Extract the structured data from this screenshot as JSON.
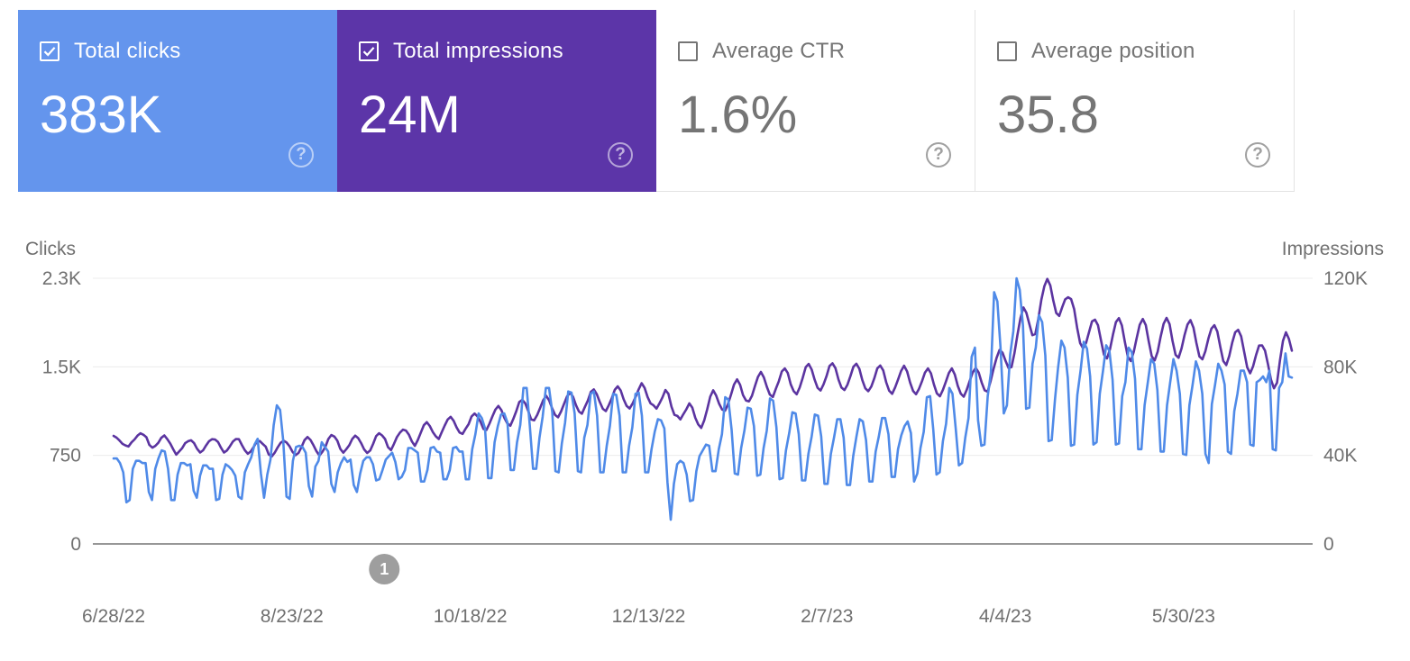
{
  "cards": [
    {
      "label": "Total clicks",
      "value": "383K",
      "checked": true,
      "color": "#6495ed"
    },
    {
      "label": "Total impressions",
      "value": "24M",
      "checked": true,
      "color": "#5c35a8"
    },
    {
      "label": "Average CTR",
      "value": "1.6%",
      "checked": false,
      "color": "#ffffff"
    },
    {
      "label": "Average position",
      "value": "35.8",
      "checked": false,
      "color": "#ffffff"
    }
  ],
  "help_glyph": "?",
  "chart_data": {
    "type": "line",
    "left_axis_title": "Clicks",
    "right_axis_title": "Impressions",
    "left_ticks": [
      "0",
      "750",
      "1.5K",
      "2.3K"
    ],
    "right_ticks": [
      "0",
      "40K",
      "80K",
      "120K"
    ],
    "ylim_left": [
      0,
      2300
    ],
    "ylim_right": [
      0,
      120000
    ],
    "x_tick_labels": [
      "6/28/22",
      "8/23/22",
      "10/18/22",
      "12/13/22",
      "2/7/23",
      "4/4/23",
      "5/30/23"
    ],
    "x_tick_days": [
      0,
      56,
      112,
      168,
      224,
      280,
      336
    ],
    "x_range_days": [
      0,
      370
    ],
    "annotation": {
      "label": "1",
      "day": 85
    },
    "grid": true,
    "series": [
      {
        "name": "Total clicks",
        "axis": "left",
        "color": "#4f8ae8",
        "values": [
          740,
          740,
          700,
          620,
          360,
          380,
          650,
          720,
          720,
          700,
          700,
          450,
          380,
          650,
          740,
          810,
          800,
          650,
          380,
          380,
          600,
          700,
          700,
          680,
          690,
          460,
          400,
          590,
          680,
          680,
          650,
          650,
          380,
          390,
          600,
          690,
          670,
          640,
          590,
          410,
          390,
          620,
          690,
          750,
          860,
          910,
          610,
          400,
          600,
          730,
          1030,
          1200,
          1160,
          890,
          410,
          390,
          720,
          840,
          850,
          840,
          790,
          500,
          410,
          670,
          720,
          880,
          840,
          800,
          520,
          450,
          620,
          700,
          750,
          710,
          730,
          510,
          450,
          610,
          720,
          750,
          750,
          690,
          550,
          560,
          640,
          730,
          760,
          790,
          710,
          560,
          580,
          640,
          830,
          830,
          810,
          790,
          540,
          540,
          640,
          830,
          840,
          800,
          790,
          560,
          560,
          640,
          830,
          840,
          800,
          800,
          560,
          560,
          820,
          950,
          1130,
          1090,
          1000,
          570,
          570,
          880,
          1020,
          1120,
          1130,
          1050,
          640,
          640,
          880,
          1030,
          1350,
          1350,
          1020,
          650,
          650,
          920,
          1100,
          1350,
          1350,
          1140,
          630,
          620,
          870,
          1050,
          1320,
          1310,
          1130,
          630,
          620,
          920,
          1030,
          1300,
          1320,
          1110,
          620,
          620,
          850,
          1020,
          1300,
          1290,
          1110,
          620,
          620,
          850,
          1010,
          1300,
          1310,
          1110,
          620,
          620,
          820,
          970,
          1080,
          1070,
          1000,
          530,
          210,
          520,
          690,
          720,
          700,
          600,
          370,
          380,
          630,
          760,
          810,
          860,
          850,
          630,
          630,
          820,
          950,
          1270,
          1250,
          990,
          610,
          600,
          830,
          980,
          1180,
          1170,
          1020,
          590,
          600,
          830,
          980,
          1260,
          1240,
          1010,
          560,
          570,
          810,
          960,
          1140,
          1130,
          950,
          550,
          550,
          780,
          930,
          1120,
          1110,
          930,
          520,
          520,
          780,
          920,
          1080,
          1080,
          920,
          510,
          510,
          760,
          930,
          1080,
          1060,
          900,
          540,
          540,
          800,
          930,
          1090,
          1090,
          950,
          580,
          580,
          820,
          940,
          1020,
          1060,
          960,
          540,
          610,
          830,
          970,
          1270,
          1280,
          990,
          600,
          620,
          890,
          1040,
          1350,
          1300,
          1000,
          680,
          700,
          920,
          1090,
          1620,
          1700,
          1070,
          850,
          860,
          1280,
          1480,
          2180,
          2100,
          1700,
          1130,
          1200,
          1640,
          1840,
          2300,
          2200,
          1890,
          1170,
          1180,
          1560,
          1700,
          1980,
          1920,
          1630,
          890,
          900,
          1250,
          1530,
          1760,
          1700,
          1440,
          850,
          860,
          1290,
          1500,
          1750,
          1690,
          1450,
          860,
          880,
          1300,
          1500,
          1720,
          1670,
          1420,
          860,
          870,
          1280,
          1400,
          1700,
          1660,
          1430,
          820,
          820,
          1200,
          1400,
          1600,
          1560,
          1330,
          800,
          800,
          1200,
          1400,
          1600,
          1500,
          1300,
          780,
          770,
          1200,
          1380,
          1580,
          1500,
          1300,
          780,
          700,
          1210,
          1380,
          1560,
          1500,
          1380,
          800,
          780,
          1150,
          1300,
          1500,
          1500,
          1400,
          860,
          850,
          1400,
          1420,
          1450,
          1400,
          1500,
          820,
          810,
          1350,
          1400,
          1650,
          1450,
          1440
        ]
      },
      {
        "name": "Total impressions",
        "axis": "right",
        "color": "#5b34a0",
        "values": [
          48800,
          48000,
          46700,
          45200,
          44500,
          44000,
          45900,
          47200,
          48900,
          50000,
          49300,
          48200,
          44700,
          43500,
          44300,
          45700,
          47900,
          49000,
          47300,
          45300,
          42700,
          40300,
          41800,
          43300,
          45500,
          46400,
          46800,
          45500,
          43000,
          41300,
          42300,
          44500,
          46400,
          47300,
          47200,
          46100,
          43500,
          41300,
          42200,
          44100,
          46300,
          47400,
          47300,
          44700,
          42300,
          40700,
          41800,
          43900,
          46100,
          46500,
          45200,
          43900,
          40400,
          39500,
          41200,
          43600,
          45700,
          46600,
          45800,
          44100,
          41600,
          40100,
          41100,
          43800,
          46900,
          48300,
          47000,
          44600,
          41900,
          39900,
          41600,
          43800,
          47400,
          49200,
          48500,
          46600,
          42900,
          41200,
          42800,
          44600,
          47400,
          48900,
          47800,
          45500,
          42700,
          41100,
          42200,
          45200,
          48700,
          50000,
          49000,
          47400,
          43700,
          42400,
          45200,
          48300,
          50300,
          51600,
          51200,
          49300,
          46300,
          44300,
          47000,
          50300,
          53600,
          55000,
          53300,
          50600,
          48600,
          47400,
          50500,
          53500,
          56200,
          57400,
          55600,
          52600,
          50300,
          49700,
          52000,
          54100,
          57600,
          58900,
          57600,
          55100,
          51900,
          51500,
          54300,
          57600,
          60700,
          62300,
          60400,
          56900,
          54400,
          53400,
          56500,
          60000,
          64100,
          65100,
          63500,
          60100,
          56200,
          55800,
          58300,
          61500,
          64900,
          66900,
          64900,
          61300,
          58300,
          57200,
          59800,
          63200,
          66600,
          68300,
          66500,
          62700,
          59800,
          58800,
          61900,
          64800,
          68700,
          69800,
          67600,
          64100,
          61000,
          60000,
          62700,
          65800,
          69600,
          71200,
          69300,
          65300,
          62300,
          61200,
          63400,
          66500,
          69800,
          72600,
          70500,
          66400,
          63500,
          62600,
          61100,
          63500,
          66200,
          69500,
          67800,
          62000,
          58300,
          57800,
          56200,
          58600,
          60800,
          63500,
          61600,
          57000,
          54000,
          52400,
          55900,
          60900,
          66500,
          69400,
          67000,
          63300,
          60700,
          60200,
          63300,
          67500,
          72000,
          74300,
          71900,
          67200,
          64800,
          64400,
          66900,
          71300,
          75400,
          77700,
          75200,
          71000,
          67500,
          66400,
          70100,
          73500,
          77900,
          79300,
          77200,
          72100,
          69000,
          67600,
          70600,
          74900,
          79800,
          81300,
          78800,
          74200,
          70500,
          69300,
          72100,
          75800,
          80400,
          81600,
          79400,
          74200,
          70600,
          69500,
          71900,
          75800,
          80000,
          81400,
          79100,
          74000,
          70300,
          69000,
          71100,
          74800,
          79300,
          80600,
          78400,
          73000,
          69200,
          67800,
          70700,
          74300,
          78100,
          80500,
          77900,
          72900,
          69100,
          67600,
          70100,
          73500,
          77400,
          79300,
          77100,
          72100,
          68000,
          66700,
          69600,
          73300,
          77200,
          79300,
          76500,
          71400,
          67900,
          66500,
          69600,
          73600,
          77500,
          79500,
          77400,
          72900,
          69400,
          68800,
          73500,
          79100,
          84000,
          87600,
          86400,
          82800,
          79500,
          79900,
          86300,
          94500,
          102000,
          106800,
          104400,
          99300,
          94300,
          94800,
          101600,
          110300,
          116400,
          119700,
          116800,
          110000,
          104300,
          103000,
          106900,
          110500,
          111400,
          110600,
          106000,
          97600,
          90700,
          88300,
          90800,
          95700,
          100500,
          101300,
          98800,
          92100,
          85500,
          83800,
          87900,
          94500,
          100200,
          102000,
          98700,
          91300,
          84600,
          82600,
          86800,
          93100,
          99000,
          101600,
          98900,
          91500,
          84800,
          82900,
          86800,
          93600,
          99400,
          102100,
          99300,
          91700,
          85400,
          84100,
          88300,
          94300,
          99100,
          101100,
          97700,
          90700,
          84700,
          83400,
          87000,
          92800,
          97200,
          98800,
          95900,
          89000,
          82600,
          80800,
          84900,
          90900,
          95600,
          96700,
          93800,
          86700,
          79800,
          77100,
          80300,
          85400,
          89600,
          89700,
          87300,
          81100,
          74200,
          70300,
          72800,
          83000,
          91700,
          95600,
          92600,
          87300
        ]
      }
    ]
  }
}
